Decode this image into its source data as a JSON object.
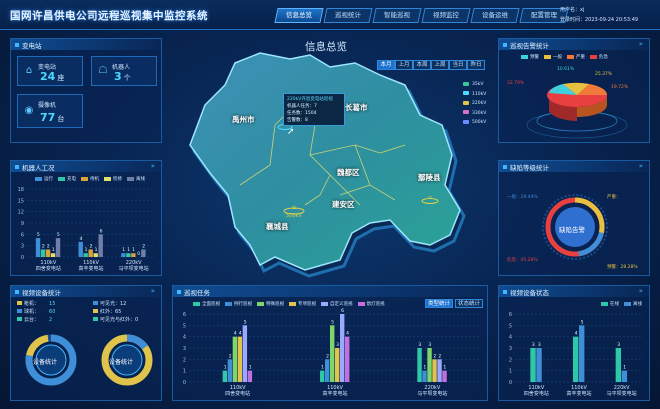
{
  "app": {
    "title": "国网许昌供电公司远程巡视集中监控系统"
  },
  "nav": {
    "tabs": [
      "信息总览",
      "巡视统计",
      "智能巡视",
      "视频监控",
      "设备运维",
      "配置管理"
    ],
    "active": 0
  },
  "user": {
    "label": "用户名：xj",
    "login": "登录时间：2023-09-24 20:53:49"
  },
  "station_panel": {
    "title": "变电站",
    "items": [
      {
        "label": "变电站",
        "value": "24",
        "unit": "座",
        "icon": "substation-icon"
      },
      {
        "label": "机器人",
        "value": "3",
        "unit": "个",
        "icon": "robot-icon"
      },
      {
        "label": "摄像机",
        "value": "77",
        "unit": "台",
        "icon": "camera-icon"
      }
    ]
  },
  "robot_panel": {
    "title": "机器人工况",
    "legend": [
      "运行",
      "充电",
      "待机",
      "检修",
      "离线"
    ],
    "legend_colors": [
      "#3f8ed8",
      "#2ec7a8",
      "#d9a13a",
      "#e2e26a",
      "#6f7fa8"
    ]
  },
  "video_panel": {
    "title": "视频设备统计",
    "legend_left": [
      "枪机：",
      "球机：",
      "云台："
    ],
    "legend_left_vals": [
      "15",
      "60",
      "2"
    ],
    "legend_right": [
      "可见光：12",
      "红外：65",
      "可见光与红外：0"
    ],
    "donut1": {
      "label": "设备统计",
      "pct1": "球机\n77.92%",
      "pct2": "云台\n2.60%",
      "pct3": "枪机\n19.48%"
    },
    "donut2": {
      "label": "设备统计",
      "pct1": "可见光\n15.58%",
      "pct2": "可见光与红外\n0%",
      "pct3": "红外\n84.42%"
    }
  },
  "map": {
    "title": "信息总览",
    "tabs": [
      "本月",
      "上月",
      "本周",
      "上周",
      "当日",
      "昨日"
    ],
    "active_tab": 0,
    "voltage_legend": [
      "35kV",
      "110kV",
      "220kV",
      "330kV",
      "500kV"
    ],
    "voltage_colors": [
      "#37c89a",
      "#4fd8ff",
      "#e0c34a",
      "#d870c8",
      "#6b8cff"
    ],
    "regions": [
      "禹州市",
      "长葛市",
      "魏都区",
      "鄢陵县",
      "建安区",
      "襄城县"
    ],
    "tooltip": {
      "title": "220kV许昌变电站巡视",
      "lines": [
        "机器人任务：7",
        "任务数：1504",
        "告警数：8"
      ]
    },
    "marker1": "500kV"
  },
  "patrol_panel": {
    "title": "巡视任务",
    "legend": [
      "全面巡视",
      "例行巡视",
      "特殊巡视",
      "专项巡视",
      "自定义巡视",
      "熄灯巡视"
    ],
    "colors": [
      "#2ec7a8",
      "#3f8ed8",
      "#7dd66a",
      "#e0c34a",
      "#9aa8ff",
      "#c36fe0"
    ],
    "buttons": [
      "类型统计",
      "状态统计"
    ]
  },
  "alarm_panel": {
    "title": "巡视告警统计",
    "legend": [
      "预警",
      "一般",
      "严重",
      "危急"
    ],
    "colors": [
      "#3fd0e0",
      "#e8c040",
      "#f07a3a",
      "#e84040"
    ],
    "pct": [
      "10.61%",
      "25.37%",
      "19.72%",
      "32.79%"
    ]
  },
  "defect_panel": {
    "title": "缺陷等级统计",
    "center": "缺陷告警",
    "labels": [
      "一般：19.44%",
      "严重：",
      "危急：45.28%",
      "预警：28.28%"
    ]
  },
  "status_panel": {
    "title": "视频设备状态",
    "legend": [
      "在线",
      "离线"
    ],
    "colors": [
      "#2ec7a8",
      "#3f8ed8"
    ]
  },
  "chart_data": [
    {
      "type": "bar",
      "title": "机器人工况",
      "categories": [
        "110kV\n四舍变电站",
        "110kV\n高丰变电站",
        "220kV\n马平坝变电站"
      ],
      "series": [
        {
          "name": "运行",
          "values": [
            5,
            4,
            1
          ]
        },
        {
          "name": "充电",
          "values": [
            2,
            1,
            1
          ]
        },
        {
          "name": "待机",
          "values": [
            2,
            2,
            1
          ]
        },
        {
          "name": "检修",
          "values": [
            1,
            1,
            0
          ]
        },
        {
          "name": "离线",
          "values": [
            5,
            6,
            2
          ]
        }
      ],
      "ylim": [
        0,
        18
      ],
      "yticks": [
        0,
        3,
        6,
        9,
        12,
        15,
        18
      ]
    },
    {
      "type": "bar",
      "title": "巡视任务",
      "categories": [
        "110kV\n四舍变电站",
        "110kV\n高丰变电站",
        "220kV\n马平坝变电站"
      ],
      "series": [
        {
          "name": "全面巡视",
          "values": [
            1,
            1,
            3
          ]
        },
        {
          "name": "例行巡视",
          "values": [
            2,
            2,
            1
          ]
        },
        {
          "name": "特殊巡视",
          "values": [
            4,
            5,
            3
          ]
        },
        {
          "name": "专项巡视",
          "values": [
            4,
            3,
            2
          ]
        },
        {
          "name": "自定义巡视",
          "values": [
            5,
            6,
            2
          ]
        },
        {
          "name": "熄灯巡视",
          "values": [
            1,
            4,
            1
          ]
        }
      ],
      "ylim": [
        0,
        6
      ],
      "yticks": [
        0,
        1,
        2,
        3,
        4,
        5,
        6
      ]
    },
    {
      "type": "bar",
      "title": "视频设备状态",
      "categories": [
        "110kV\n四舍变电站",
        "110kV\n高丰变电站",
        "220kV\n马平坝变电站"
      ],
      "series": [
        {
          "name": "在线",
          "values": [
            3,
            4,
            3
          ]
        },
        {
          "name": "离线",
          "values": [
            3,
            5,
            1
          ]
        }
      ],
      "ylim": [
        0,
        6
      ],
      "yticks": [
        0,
        1,
        2,
        3,
        4,
        5,
        6
      ]
    }
  ]
}
